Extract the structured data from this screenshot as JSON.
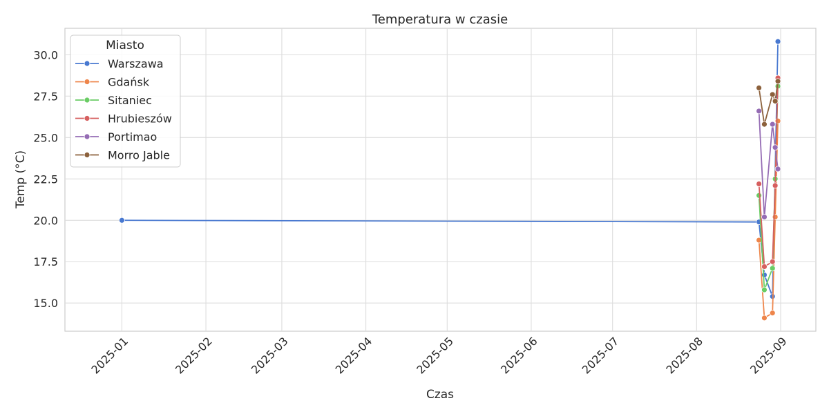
{
  "chart_data": {
    "type": "line",
    "title": "Temperatura w czasie",
    "xlabel": "Czas",
    "ylabel": "Temp (°C)",
    "x_ticks": [
      "2025-01",
      "2025-02",
      "2025-03",
      "2025-04",
      "2025-05",
      "2025-06",
      "2025-07",
      "2025-08",
      "2025-09"
    ],
    "y_ticks": [
      "15.0",
      "17.5",
      "20.0",
      "22.5",
      "25.0",
      "27.5",
      "30.0"
    ],
    "xlim": [
      "2024-12-11",
      "2025-09-14"
    ],
    "ylim": [
      13.3,
      31.6
    ],
    "grid": true,
    "legend_title": "Miasto",
    "legend_position": "top-left",
    "series": [
      {
        "name": "Warszawa",
        "color": "#4878d0",
        "points": [
          [
            "2025-01-01",
            20.0
          ],
          [
            "2025-08-24",
            19.9
          ],
          [
            "2025-08-26",
            16.7
          ],
          [
            "2025-08-29",
            15.4
          ],
          [
            "2025-08-31",
            30.8
          ]
        ]
      },
      {
        "name": "Gdańsk",
        "color": "#ee854a",
        "points": [
          [
            "2025-08-24",
            18.8
          ],
          [
            "2025-08-26",
            14.1
          ],
          [
            "2025-08-29",
            14.4
          ],
          [
            "2025-08-30",
            20.2
          ],
          [
            "2025-08-31",
            26.0
          ]
        ]
      },
      {
        "name": "Sitaniec",
        "color": "#6acc64",
        "points": [
          [
            "2025-08-24",
            21.5
          ],
          [
            "2025-08-26",
            15.8
          ],
          [
            "2025-08-29",
            17.1
          ],
          [
            "2025-08-30",
            22.5
          ],
          [
            "2025-08-31",
            28.1
          ]
        ]
      },
      {
        "name": "Hrubieszów",
        "color": "#d65f5f",
        "points": [
          [
            "2025-08-24",
            22.2
          ],
          [
            "2025-08-26",
            17.2
          ],
          [
            "2025-08-29",
            17.5
          ],
          [
            "2025-08-30",
            22.1
          ],
          [
            "2025-08-31",
            28.6
          ]
        ]
      },
      {
        "name": "Portimao",
        "color": "#956cb4",
        "points": [
          [
            "2025-08-24",
            26.6
          ],
          [
            "2025-08-26",
            20.2
          ],
          [
            "2025-08-29",
            25.8
          ],
          [
            "2025-08-30",
            24.4
          ],
          [
            "2025-08-31",
            23.1
          ]
        ]
      },
      {
        "name": "Morro Jable",
        "color": "#8c613c",
        "points": [
          [
            "2025-08-24",
            28.0
          ],
          [
            "2025-08-26",
            25.8
          ],
          [
            "2025-08-29",
            27.6
          ],
          [
            "2025-08-30",
            27.2
          ],
          [
            "2025-08-31",
            28.4
          ]
        ]
      }
    ]
  }
}
